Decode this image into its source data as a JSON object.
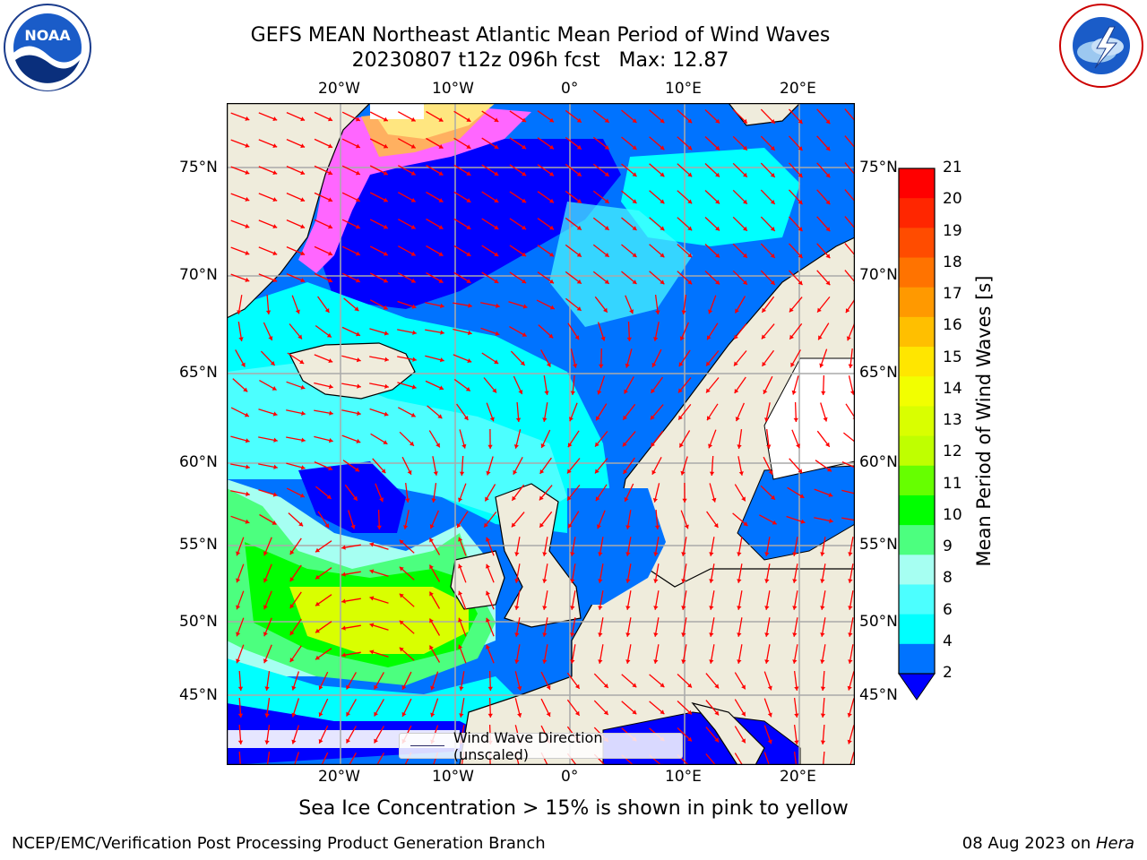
{
  "title": {
    "line1": "GEFS MEAN Northeast Atlantic Mean Period of Wind Waves",
    "line2": "20230807 t12z 096h fcst   Max: 12.87"
  },
  "subtitle": "Sea Ice Concentration > 15% is shown in pink to yellow",
  "footer": {
    "left": "NCEP/EMC/Verification Post Processing Product Generation Branch",
    "date": "08 Aug 2023 on ",
    "machine": "Hera"
  },
  "legend": {
    "label": "Wind Wave Direction (unscaled)"
  },
  "axes": {
    "lon_labels": [
      "20°W",
      "10°W",
      "0°",
      "10°E",
      "20°E"
    ],
    "lat_labels": [
      "75°N",
      "70°N",
      "65°N",
      "60°N",
      "55°N",
      "50°N",
      "45°N"
    ]
  },
  "colorbar": {
    "title": "Mean Period of Wind Waves [s]",
    "ticks": [
      "21",
      "20",
      "19",
      "18",
      "17",
      "16",
      "15",
      "14",
      "13",
      "12",
      "11",
      "10",
      "9",
      "8",
      "6",
      "4",
      "2"
    ],
    "colors": [
      "#ff0000",
      "#ff2600",
      "#ff4c00",
      "#ff7300",
      "#ff9900",
      "#ffbf00",
      "#ffe600",
      "#f2ff00",
      "#d9ff00",
      "#bfff00",
      "#66ff00",
      "#00ff00",
      "#4cff7f",
      "#a6fff2",
      "#4cffff",
      "#00ffff",
      "#0073ff"
    ],
    "extend_color": "#0000ff"
  },
  "map_colors": {
    "land": "#efecdc",
    "ocean_deep_blue": "#0000ff",
    "ocean_blue": "#0073ff",
    "ocean_cyan": "#00ffff",
    "ocean_light_cyan": "#4cffff",
    "ocean_pale": "#a6fff2",
    "green": "#4cff7f",
    "bright_green": "#00ff00",
    "yellow_green": "#d9ff00",
    "ice_pink": "#ff66ff",
    "ice_yellow": "#ffe680",
    "arrow": "#ff0000"
  },
  "logos": {
    "noaa_text": "NOAA",
    "nws_text": "NATIONAL WEATHER SERVICE"
  }
}
